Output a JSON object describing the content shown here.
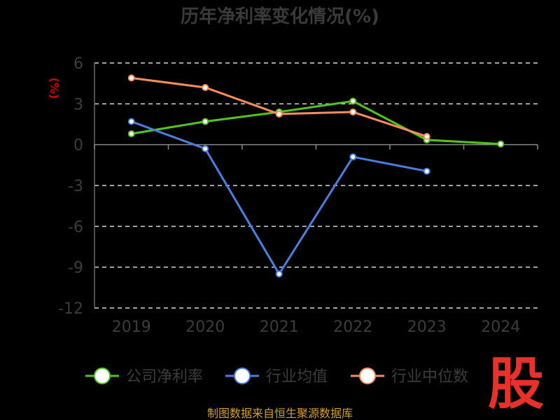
{
  "chart_data": {
    "type": "line",
    "title": "历年净利率变化情况(%)",
    "ylabel": "(%)",
    "categories": [
      "2019",
      "2020",
      "2021",
      "2022",
      "2023",
      "2024"
    ],
    "ylim": [
      -12,
      6
    ],
    "yticks": [
      6,
      3,
      0,
      -3,
      -6,
      -9,
      -12
    ],
    "grid": true,
    "legend_position": "bottom",
    "series": [
      {
        "name": "公司净利率",
        "color": "#52c41a",
        "values": [
          0.8,
          1.7,
          2.4,
          3.2,
          0.35,
          0.05
        ]
      },
      {
        "name": "行业均值",
        "color": "#4a7fe0",
        "values": [
          1.7,
          -0.3,
          -9.5,
          -0.9,
          -1.95,
          null
        ]
      },
      {
        "name": "行业中位数",
        "color": "#f98d5c",
        "values": [
          4.9,
          4.2,
          2.25,
          2.4,
          0.6,
          null
        ]
      }
    ]
  },
  "source": "制图数据来自恒生聚源数据库",
  "logo": {
    "text": "股",
    "color": "#e8312b"
  }
}
